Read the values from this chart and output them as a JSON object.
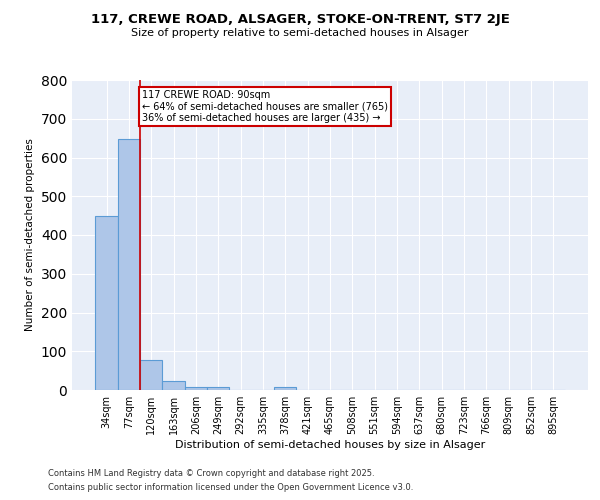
{
  "title": "117, CREWE ROAD, ALSAGER, STOKE-ON-TRENT, ST7 2JE",
  "subtitle": "Size of property relative to semi-detached houses in Alsager",
  "xlabel": "Distribution of semi-detached houses by size in Alsager",
  "ylabel": "Number of semi-detached properties",
  "bar_labels": [
    "34sqm",
    "77sqm",
    "120sqm",
    "163sqm",
    "206sqm",
    "249sqm",
    "292sqm",
    "335sqm",
    "378sqm",
    "421sqm",
    "465sqm",
    "508sqm",
    "551sqm",
    "594sqm",
    "637sqm",
    "680sqm",
    "723sqm",
    "766sqm",
    "809sqm",
    "852sqm",
    "895sqm"
  ],
  "bar_values": [
    450,
    648,
    78,
    22,
    9,
    7,
    0,
    0,
    8,
    0,
    0,
    0,
    0,
    0,
    0,
    0,
    0,
    0,
    0,
    0,
    0
  ],
  "bar_color": "#aec6e8",
  "bar_edge_color": "#5b9bd5",
  "background_color": "#e8eef8",
  "grid_color": "#ffffff",
  "red_line_x": 1.5,
  "annotation_text": "117 CREWE ROAD: 90sqm\n← 64% of semi-detached houses are smaller (765)\n36% of semi-detached houses are larger (435) →",
  "annotation_box_color": "#ffffff",
  "annotation_edge_color": "#cc0000",
  "ylim": [
    0,
    800
  ],
  "yticks": [
    0,
    100,
    200,
    300,
    400,
    500,
    600,
    700,
    800
  ],
  "footnote1": "Contains HM Land Registry data © Crown copyright and database right 2025.",
  "footnote2": "Contains public sector information licensed under the Open Government Licence v3.0."
}
